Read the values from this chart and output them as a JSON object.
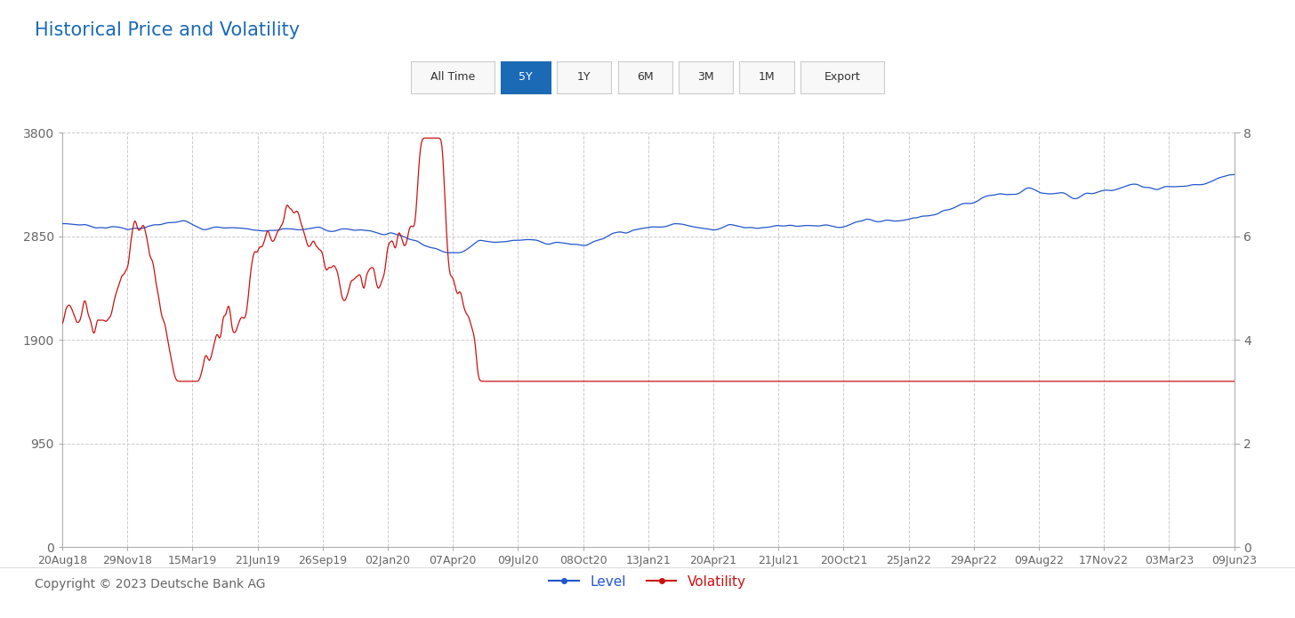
{
  "title": "Historical Price and Volatility",
  "title_color": "#1a6ab5",
  "title_fontsize": 15,
  "background_color": "#ffffff",
  "left_ylim": [
    0,
    3800
  ],
  "right_ylim": [
    0,
    8
  ],
  "left_yticks": [
    0,
    950,
    1900,
    2850,
    3800
  ],
  "right_yticks": [
    0,
    2,
    4,
    6,
    8
  ],
  "x_labels": [
    "20Aug18",
    "29Nov18",
    "15Mar19",
    "21Jun19",
    "26Sep19",
    "02Jan20",
    "07Apr20",
    "09Jul20",
    "08Oct20",
    "13Jan21",
    "20Apr21",
    "21Jul21",
    "20Oct21",
    "25Jan22",
    "29Apr22",
    "09Aug22",
    "17Nov22",
    "03Mar23",
    "09Jun23"
  ],
  "level_color": "#2255cc",
  "volatility_color": "#cc1111",
  "legend_level_label": "Level",
  "legend_volatility_label": "Volatility",
  "copyright_text": "Copyright © 2023 Deutsche Bank AG",
  "grid_color": "#cccccc",
  "axis_color": "#aaaaaa",
  "tick_color": "#666666",
  "tick_fontsize": 10,
  "copyright_fontsize": 10,
  "button_labels": [
    "All Time",
    "5Y",
    "1Y",
    "6M",
    "3M",
    "1M",
    "Export"
  ],
  "active_button": "5Y",
  "active_button_color": "#1a6ab5",
  "active_button_text_color": "#ffffff",
  "button_border_color": "#cccccc",
  "button_text_color": "#333333",
  "n_points": 1260
}
